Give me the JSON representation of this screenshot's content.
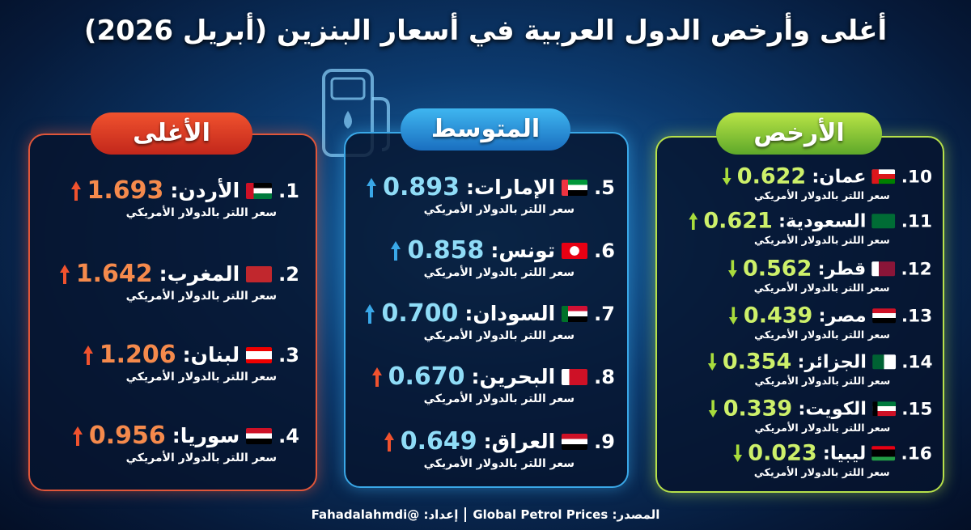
{
  "title": "أغلى وأرخص الدول العربية في أسعار البنزين (أبريل 2026)",
  "columns": [
    {
      "heading": "الأغلى",
      "items": [
        {
          "rank": "1.",
          "name": "الأردن:",
          "price": "1.693",
          "unit": "سعر اللتر بالدولار الأمريكي"
        },
        {
          "rank": "2.",
          "name": "المغرب:",
          "price": "1.642",
          "unit": "سعر اللتر بالدولار الأمريكي"
        },
        {
          "rank": "3.",
          "name": "لبنان:",
          "price": "1.206",
          "unit": "سعر اللتر بالدولار الأمريكي"
        },
        {
          "rank": "4.",
          "name": "سوريا:",
          "price": "0.956",
          "unit": "سعر اللتر بالدولار الأمريكي"
        }
      ]
    },
    {
      "heading": "المتوسط",
      "items": [
        {
          "rank": "5.",
          "name": "الإمارات:",
          "price": "0.893",
          "unit": "سعر اللتر بالدولار الأمريكي"
        },
        {
          "rank": "6.",
          "name": "تونس:",
          "price": "0.858",
          "unit": "سعر اللتر بالدولار الأمريكي"
        },
        {
          "rank": "7.",
          "name": "السودان:",
          "price": "0.700",
          "unit": "سعر اللتر بالدولار الأمريكي"
        },
        {
          "rank": "8.",
          "name": "البحرين:",
          "price": "0.670",
          "unit": "سعر اللتر بالدولار الأمريكي"
        },
        {
          "rank": "9.",
          "name": "العراق:",
          "price": "0.649",
          "unit": "سعر اللتر بالدولار الأمريكي"
        }
      ]
    },
    {
      "heading": "الأرخص",
      "items": [
        {
          "rank": "10.",
          "name": "عمان:",
          "price": "0.622",
          "unit": "سعر اللتر بالدولار الأمريكي"
        },
        {
          "rank": "11.",
          "name": "السعودية:",
          "price": "0.621",
          "unit": "سعر اللتر بالدولار الأمريكي"
        },
        {
          "rank": "12.",
          "name": "قطر:",
          "price": "0.562",
          "unit": "سعر اللتر بالدولار الأمريكي"
        },
        {
          "rank": "13.",
          "name": "مصر:",
          "price": "0.439",
          "unit": "سعر اللتر بالدولار الأمريكي"
        },
        {
          "rank": "14.",
          "name": "الجزائر:",
          "price": "0.354",
          "unit": "سعر اللتر بالدولار الأمريكي"
        },
        {
          "rank": "15.",
          "name": "الكويت:",
          "price": "0.339",
          "unit": "سعر اللتر بالدولار الأمريكي"
        },
        {
          "rank": "16.",
          "name": "ليبيا:",
          "price": "0.023",
          "unit": "سعر اللتر بالدولار الأمريكي"
        }
      ]
    }
  ],
  "footer": {
    "source": "المصدر: Global Petrol Prices",
    "author": "إعداد: @Fahadalahmdi"
  }
}
